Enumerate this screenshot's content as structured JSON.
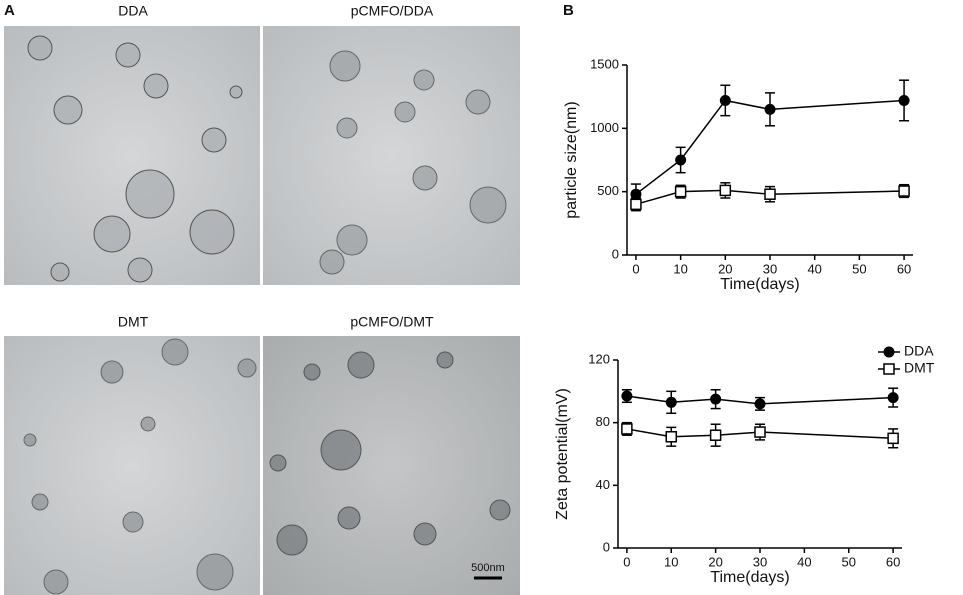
{
  "panel_a": {
    "label": "A",
    "images": [
      "DDA",
      "pCMFO/DDA",
      "DMT",
      "pCMFO/DMT"
    ],
    "scale_bar": "500nm"
  },
  "panel_b": {
    "label": "B"
  },
  "chart_data": [
    {
      "type": "line",
      "ylabel": "particle size(nm)",
      "xlabel": "Time(days)",
      "x": [
        0,
        10,
        20,
        30,
        60
      ],
      "xlim": [
        -2,
        62
      ],
      "xticks": [
        0,
        10,
        20,
        30,
        40,
        50,
        60
      ],
      "ylim": [
        0,
        1500
      ],
      "yticks": [
        0,
        500,
        1000,
        1500
      ],
      "series": [
        {
          "name": "DDA",
          "color": "#000000",
          "marker": "circle",
          "values": [
            480,
            750,
            1220,
            1150,
            1220
          ],
          "errors": [
            80,
            100,
            120,
            130,
            160
          ]
        },
        {
          "name": "DMT",
          "color": "#000000",
          "marker": "square",
          "values": [
            400,
            500,
            510,
            480,
            505
          ],
          "errors": [
            50,
            50,
            60,
            60,
            50
          ]
        }
      ]
    },
    {
      "type": "line",
      "ylabel": "Zeta potential(mV)",
      "xlabel": "Time(days)",
      "x": [
        0,
        10,
        20,
        30,
        60
      ],
      "xlim": [
        -2,
        62
      ],
      "xticks": [
        0,
        10,
        20,
        30,
        40,
        50,
        60
      ],
      "ylim": [
        0,
        120
      ],
      "yticks": [
        0,
        40,
        80,
        120
      ],
      "legend": "upper right",
      "series": [
        {
          "name": "DDA",
          "color": "#000000",
          "marker": "circle",
          "values": [
            97,
            93,
            95,
            92,
            96
          ],
          "errors": [
            4,
            7,
            6,
            4,
            6
          ]
        },
        {
          "name": "DMT",
          "color": "#000000",
          "marker": "square",
          "values": [
            76,
            71,
            72,
            74,
            70
          ],
          "errors": [
            4,
            6,
            7,
            5,
            6
          ]
        }
      ]
    }
  ]
}
